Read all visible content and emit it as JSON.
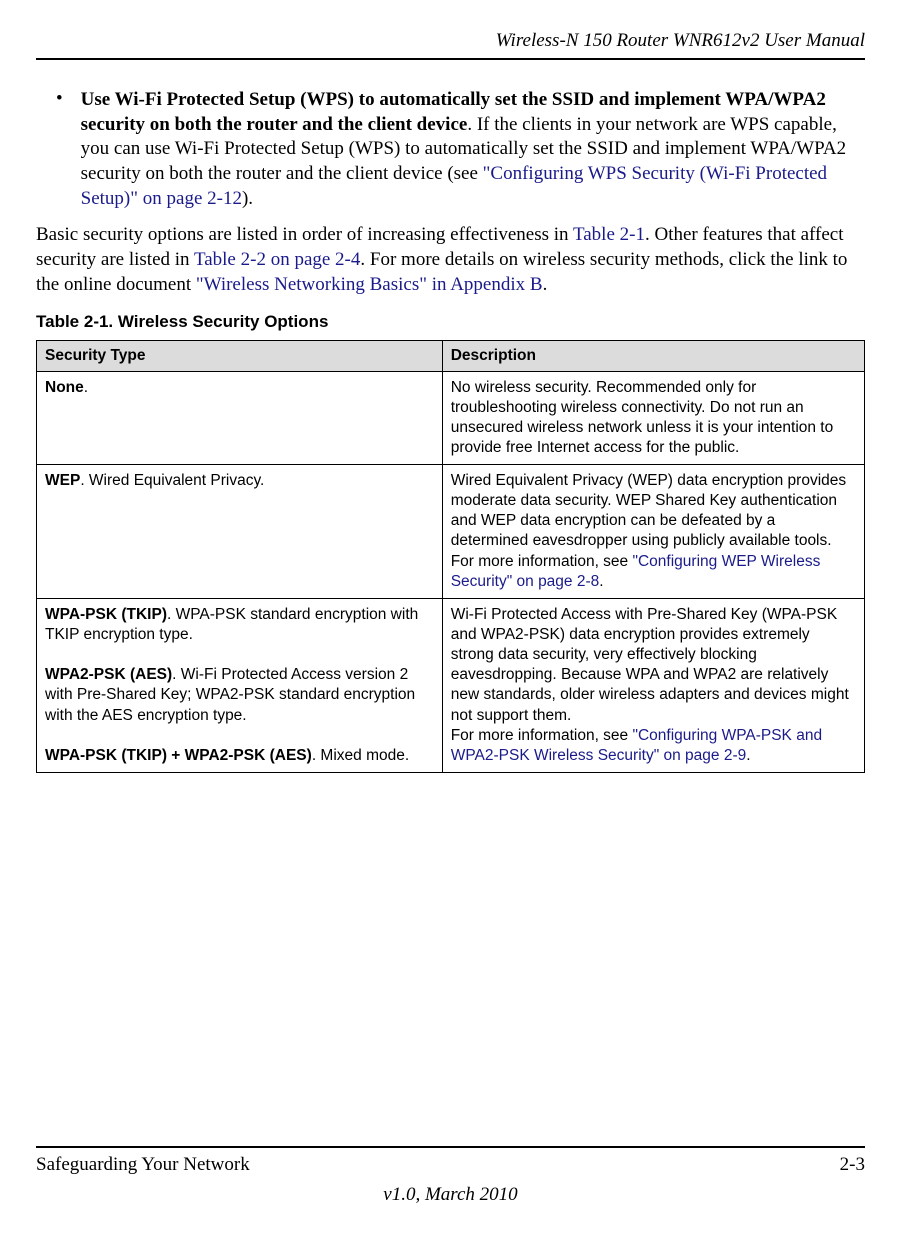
{
  "header": {
    "title": "Wireless-N 150 Router WNR612v2 User Manual"
  },
  "bullet": {
    "marker": "•",
    "bold_part": "Use Wi-Fi Protected Setup (WPS) to automatically set the SSID and implement WPA/WPA2 security on both the router and the client device",
    "text_part": ". If the clients in your network are WPS capable, you can use Wi-Fi Protected Setup (WPS) to automatically set the SSID and implement WPA/WPA2 security on both the router and the client device (see ",
    "link_part": "\"Configuring WPS Security (Wi-Fi Protected Setup)\" on page 2-12",
    "end_part": ")."
  },
  "paragraph": {
    "text1": "Basic security options are listed in order of increasing effectiveness in ",
    "link1": "Table 2-1",
    "text2": ". Other features that affect security are listed in ",
    "link2": "Table 2-2 on page 2-4",
    "text3": ". For more details on wireless security methods, click the link to the online document ",
    "link3": "\"Wireless Networking Basics\" in Appendix B",
    "text4": "."
  },
  "table": {
    "title": "Table 2-1.  Wireless Security Options",
    "headers": {
      "col1": "Security Type",
      "col2": "Description"
    },
    "rows": [
      {
        "left_bold": "None",
        "left_text": ".",
        "right_text": "No wireless security. Recommended only for troubleshooting wireless connectivity. Do not run an unsecured wireless network unless it is your intention to provide free Internet access for the public."
      },
      {
        "left_bold": "WEP",
        "left_text": ". Wired Equivalent Privacy.",
        "right_text1": "Wired Equivalent Privacy (WEP) data encryption provides moderate data security. WEP Shared Key authentication and WEP data encryption can be defeated by a determined eavesdropper using publicly available tools.",
        "right_text2": "For more information, see ",
        "right_link": "\"Configuring WEP Wireless Security\" on page 2-8",
        "right_end": "."
      },
      {
        "left_bold1": "WPA-PSK (TKIP)",
        "left_text1": ". WPA-PSK standard encryption with TKIP encryption type.",
        "left_bold2": "WPA2-PSK (AES)",
        "left_text2": ". Wi-Fi Protected Access version 2 with Pre-Shared Key; WPA2-PSK standard encryption with the AES encryption type.",
        "left_bold3": "WPA-PSK (TKIP) + WPA2-PSK (AES)",
        "left_text3": ". Mixed mode.",
        "right_text1": "Wi-Fi Protected Access with Pre-Shared Key (WPA-PSK and WPA2-PSK) data encryption provides extremely strong data security, very effectively blocking eavesdropping. Because WPA and WPA2 are relatively new standards, older wireless adapters and devices might not support them.",
        "right_text2": "For more information, see ",
        "right_link": "\"Configuring WPA-PSK and WPA2-PSK Wireless Security\" on page 2-9",
        "right_end": "."
      }
    ]
  },
  "footer": {
    "left": "Safeguarding Your Network",
    "right": "2-3",
    "version": "v1.0, March 2010"
  }
}
